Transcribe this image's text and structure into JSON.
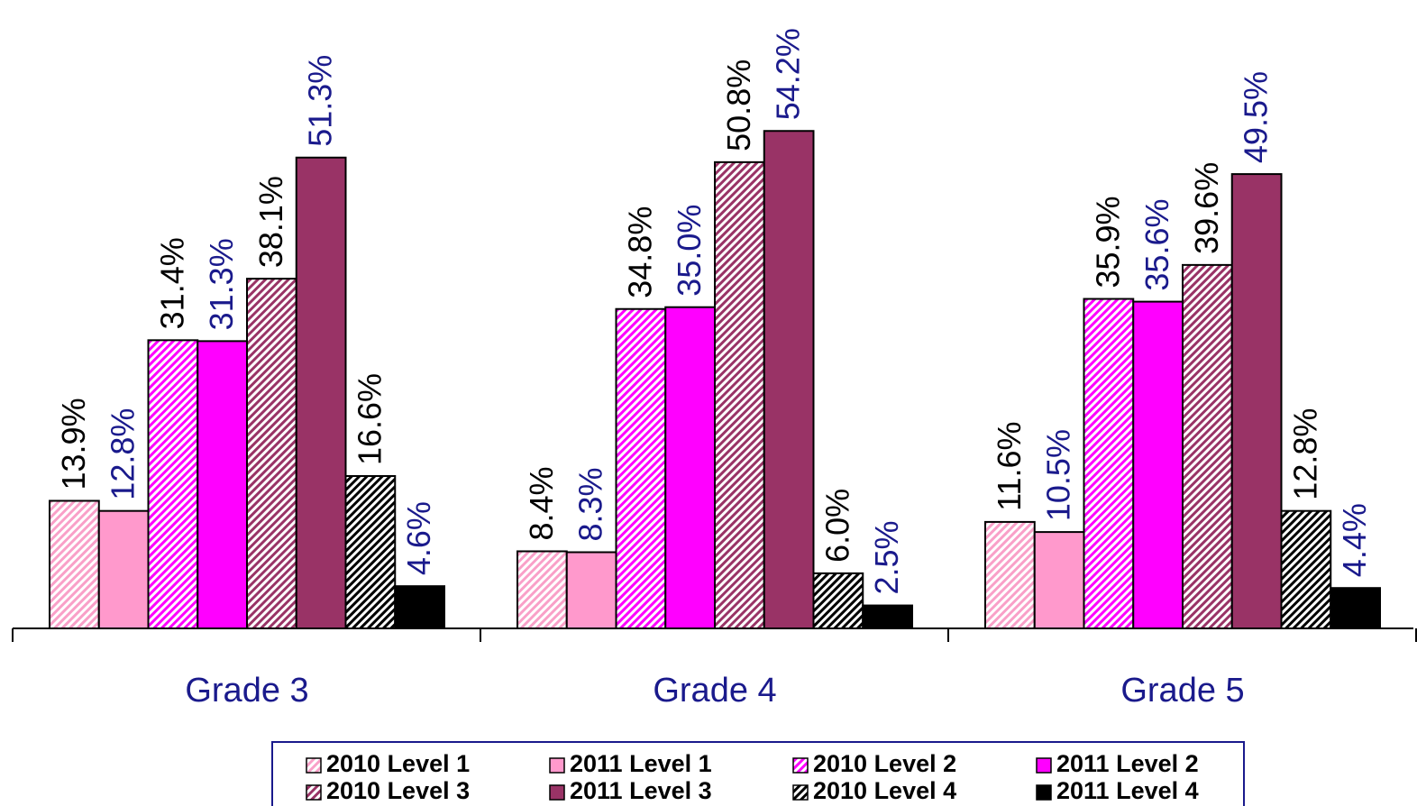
{
  "chart_data": {
    "type": "bar",
    "categories": [
      "Grade 3",
      "Grade 4",
      "Grade 5"
    ],
    "series": [
      {
        "name": "2010 Level 1",
        "color": "#f9a0c8",
        "hatch": true,
        "label_color": "#000000",
        "values": [
          13.9,
          8.4,
          11.6
        ],
        "value_labels": [
          "13.9%",
          "8.4%",
          "11.6%"
        ]
      },
      {
        "name": "2011 Level 1",
        "color": "#ff99cc",
        "hatch": false,
        "label_color": "#1a1a8c",
        "values": [
          12.8,
          8.3,
          10.5
        ],
        "value_labels": [
          "12.8%",
          "8.3%",
          "10.5%"
        ]
      },
      {
        "name": "2010 Level 2",
        "color": "#ff00ff",
        "hatch": true,
        "label_color": "#000000",
        "values": [
          31.4,
          34.8,
          35.9
        ],
        "value_labels": [
          "31.4%",
          "34.8%",
          "35.9%"
        ]
      },
      {
        "name": "2011 Level 2",
        "color": "#ff00ff",
        "hatch": false,
        "label_color": "#1a1a8c",
        "values": [
          31.3,
          35.0,
          35.6
        ],
        "value_labels": [
          "31.3%",
          "35.0%",
          "35.6%"
        ]
      },
      {
        "name": "2010 Level 3",
        "color": "#993366",
        "hatch": true,
        "label_color": "#000000",
        "values": [
          38.1,
          50.8,
          39.6
        ],
        "value_labels": [
          "38.1%",
          "50.8%",
          "39.6%"
        ]
      },
      {
        "name": "2011 Level 3",
        "color": "#993366",
        "hatch": false,
        "label_color": "#1a1a8c",
        "values": [
          51.3,
          54.2,
          49.5
        ],
        "value_labels": [
          "51.3%",
          "54.2%",
          "49.5%"
        ]
      },
      {
        "name": "2010 Level 4",
        "color": "#000000",
        "hatch": true,
        "label_color": "#000000",
        "values": [
          16.6,
          6.0,
          12.8
        ],
        "value_labels": [
          "16.6%",
          "6.0%",
          "12.8%"
        ]
      },
      {
        "name": "2011 Level 4",
        "color": "#000000",
        "hatch": false,
        "label_color": "#1a1a8c",
        "values": [
          4.6,
          2.5,
          4.4
        ],
        "value_labels": [
          "4.6%",
          "2.5%",
          "4.4%"
        ]
      }
    ]
  }
}
